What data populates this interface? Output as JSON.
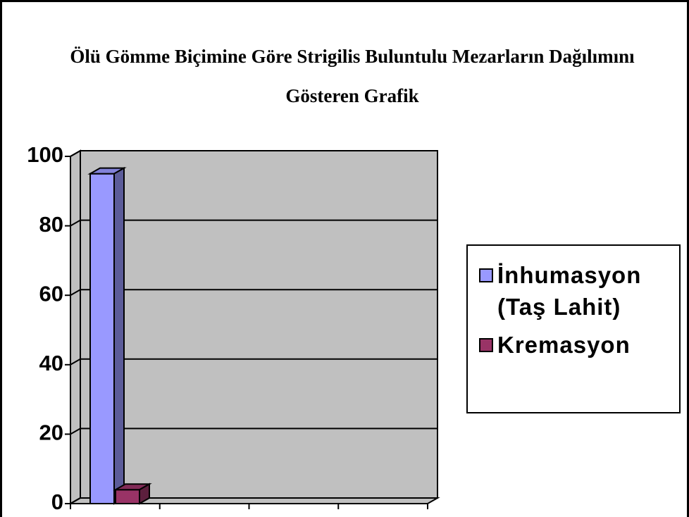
{
  "chart_data": {
    "type": "bar3d",
    "title": "Ölü Gömme Biçimine Göre Strigilis Buluntulu Mezarların Dağılımını Gösteren Grafik",
    "categories": [
      null,
      null,
      null,
      null
    ],
    "series": [
      {
        "name": "İnhumasyon (Taş Lahit)",
        "color": "#9999ff",
        "values": [
          95,
          null,
          null,
          null
        ]
      },
      {
        "name": "Kremasyon",
        "color": "#993366",
        "values": [
          4,
          null,
          null,
          null
        ]
      }
    ],
    "ylim": [
      0,
      100
    ],
    "yticks": [
      0,
      20,
      40,
      60,
      80,
      100
    ],
    "grid": true,
    "legend": "right"
  }
}
